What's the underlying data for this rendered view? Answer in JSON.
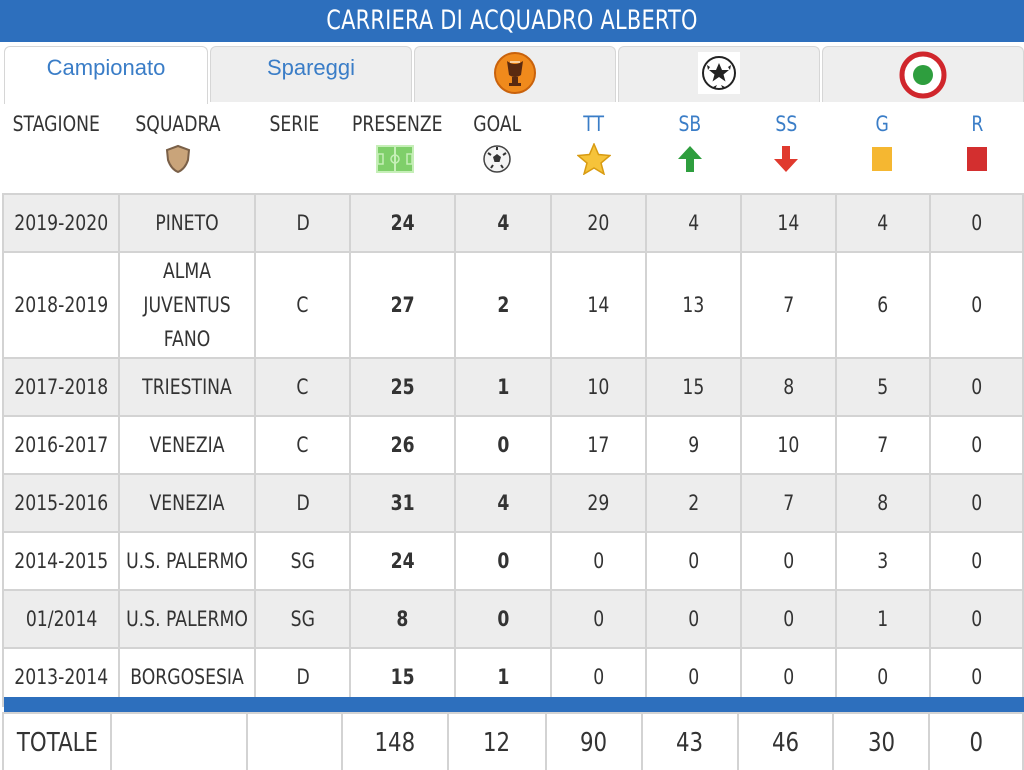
{
  "title": "CARRIERA DI ACQUADRO ALBERTO",
  "tabs": [
    {
      "label": "Campionato",
      "active": true
    },
    {
      "label": "Spareggi",
      "active": false
    },
    {
      "icon": "europa-league-trophy-icon"
    },
    {
      "icon": "champions-league-ball-icon"
    },
    {
      "icon": "coppa-italia-roundel-icon"
    }
  ],
  "headers": {
    "stagione": "STAGIONE",
    "squadra": "SQUADRA",
    "serie": "SERIE",
    "presenze": "PRESENZE",
    "goal": "GOAL",
    "tt": "TT",
    "sb": "SB",
    "ss": "SS",
    "g": "G",
    "r": "R"
  },
  "colors": {
    "primary": "#2d6fbd",
    "link": "#3a7dc7",
    "yellow_card": "#f5b731",
    "red_card": "#d32f2f",
    "sub_in": "#2e9e3e",
    "sub_out": "#e03a2e"
  },
  "rows": [
    {
      "stagione": "2019-2020",
      "squadra": "PINETO",
      "serie": "D",
      "presenze": "24",
      "goal": "4",
      "tt": "20",
      "sb": "4",
      "ss": "14",
      "g": "4",
      "r": "0"
    },
    {
      "stagione": "2018-2019",
      "squadra": "ALMA JUVENTUS FANO",
      "serie": "C",
      "presenze": "27",
      "goal": "2",
      "tt": "14",
      "sb": "13",
      "ss": "7",
      "g": "6",
      "r": "0"
    },
    {
      "stagione": "2017-2018",
      "squadra": "TRIESTINA",
      "serie": "C",
      "presenze": "25",
      "goal": "1",
      "tt": "10",
      "sb": "15",
      "ss": "8",
      "g": "5",
      "r": "0"
    },
    {
      "stagione": "2016-2017",
      "squadra": "VENEZIA",
      "serie": "C",
      "presenze": "26",
      "goal": "0",
      "tt": "17",
      "sb": "9",
      "ss": "10",
      "g": "7",
      "r": "0"
    },
    {
      "stagione": "2015-2016",
      "squadra": "VENEZIA",
      "serie": "D",
      "presenze": "31",
      "goal": "4",
      "tt": "29",
      "sb": "2",
      "ss": "7",
      "g": "8",
      "r": "0"
    },
    {
      "stagione": "2014-2015",
      "squadra": "U.S. PALERMO",
      "serie": "SG",
      "presenze": "24",
      "goal": "0",
      "tt": "0",
      "sb": "0",
      "ss": "0",
      "g": "3",
      "r": "0"
    },
    {
      "stagione": "01/2014",
      "squadra": "U.S. PALERMO",
      "serie": "SG",
      "presenze": "8",
      "goal": "0",
      "tt": "0",
      "sb": "0",
      "ss": "0",
      "g": "1",
      "r": "0"
    },
    {
      "stagione": "2013-2014",
      "squadra": "BORGOSESIA",
      "serie": "D",
      "presenze": "15",
      "goal": "1",
      "tt": "0",
      "sb": "0",
      "ss": "0",
      "g": "0",
      "r": "0"
    }
  ],
  "totals": {
    "label": "TOTALE",
    "squadra": "",
    "serie": "",
    "presenze": "148",
    "goal": "12",
    "tt": "90",
    "sb": "43",
    "ss": "46",
    "g": "30",
    "r": "0"
  }
}
